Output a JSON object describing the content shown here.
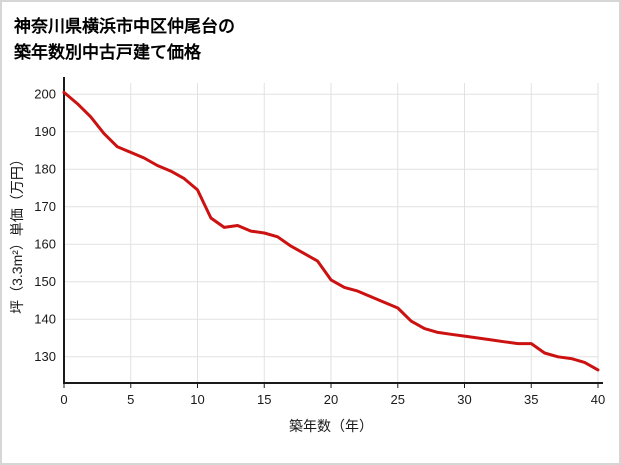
{
  "title": {
    "line1": "神奈川県横浜市中区仲尾台の",
    "line2": "築年数別中古戸建て価格"
  },
  "colors": {
    "line": "#cc1111",
    "grid": "#e2e2e2",
    "axis": "#1a1a1a",
    "page_border": "#d6d6d6",
    "background": "#ffffff"
  },
  "chart_data": {
    "type": "line",
    "title": "神奈川県横浜市中区仲尾台の築年数別中古戸建て価格",
    "xlabel": "築年数（年）",
    "ylabel": "坪（3.3m²）単価（万円）",
    "xlim": [
      0,
      40
    ],
    "ylim": [
      123,
      203
    ],
    "x_ticks": [
      0,
      5,
      10,
      15,
      20,
      25,
      30,
      35,
      40
    ],
    "y_ticks": [
      130,
      140,
      150,
      160,
      170,
      180,
      190,
      200
    ],
    "grid": true,
    "legend": "none",
    "line_color": "#cc1111",
    "x": [
      0,
      1,
      2,
      3,
      4,
      5,
      6,
      7,
      8,
      9,
      10,
      11,
      12,
      13,
      14,
      15,
      16,
      17,
      18,
      19,
      20,
      21,
      22,
      23,
      24,
      25,
      26,
      27,
      28,
      29,
      30,
      31,
      32,
      33,
      34,
      35,
      36,
      37,
      38,
      39,
      40
    ],
    "y": [
      200.5,
      197.5,
      194,
      189.5,
      186,
      184.5,
      183,
      181,
      179.5,
      177.5,
      174.5,
      167,
      164.5,
      165,
      163.5,
      163,
      162,
      159.5,
      157.5,
      155.5,
      150.5,
      148.5,
      147.5,
      146,
      144.5,
      143,
      139.5,
      137.5,
      136.5,
      136,
      135.5,
      135,
      134.5,
      134,
      133.5,
      133.5,
      131,
      130,
      129.5,
      128.5,
      126.5
    ]
  }
}
